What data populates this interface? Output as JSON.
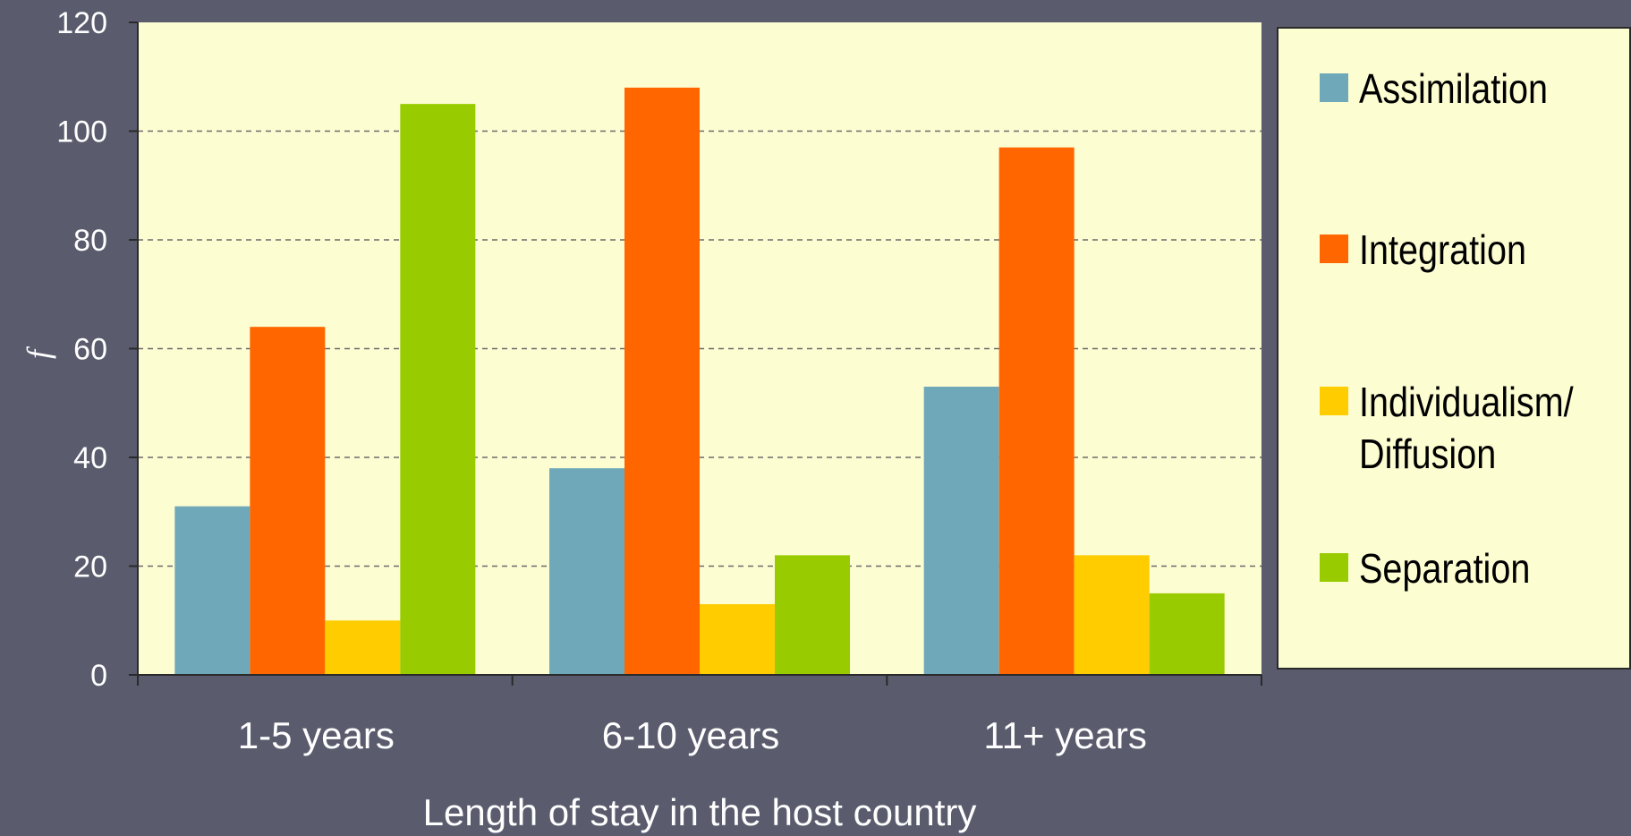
{
  "chart_data": {
    "type": "bar",
    "categories": [
      "1-5 years",
      "6-10 years",
      "11+ years"
    ],
    "series": [
      {
        "name": "Assimilation",
        "values": [
          31,
          38,
          53
        ],
        "color": "#6fa8b9"
      },
      {
        "name": "Integration",
        "values": [
          64,
          108,
          97
        ],
        "color": "#ff6600"
      },
      {
        "name": "Individualism/\nDiffusion",
        "values": [
          10,
          13,
          22
        ],
        "color": "#ffcc00"
      },
      {
        "name": "Separation",
        "values": [
          105,
          22,
          15
        ],
        "color": "#99cc00"
      }
    ],
    "xlabel": "Length of stay in the host country",
    "ylabel": "f",
    "ylim": [
      0,
      120
    ],
    "yticks": [
      0,
      20,
      40,
      60,
      80,
      100,
      120
    ],
    "grid": true,
    "legend_position": "right"
  },
  "colors": {
    "background": "#5a5c6e",
    "plot_area": "#fdfdd2",
    "text": "#ffffff"
  }
}
